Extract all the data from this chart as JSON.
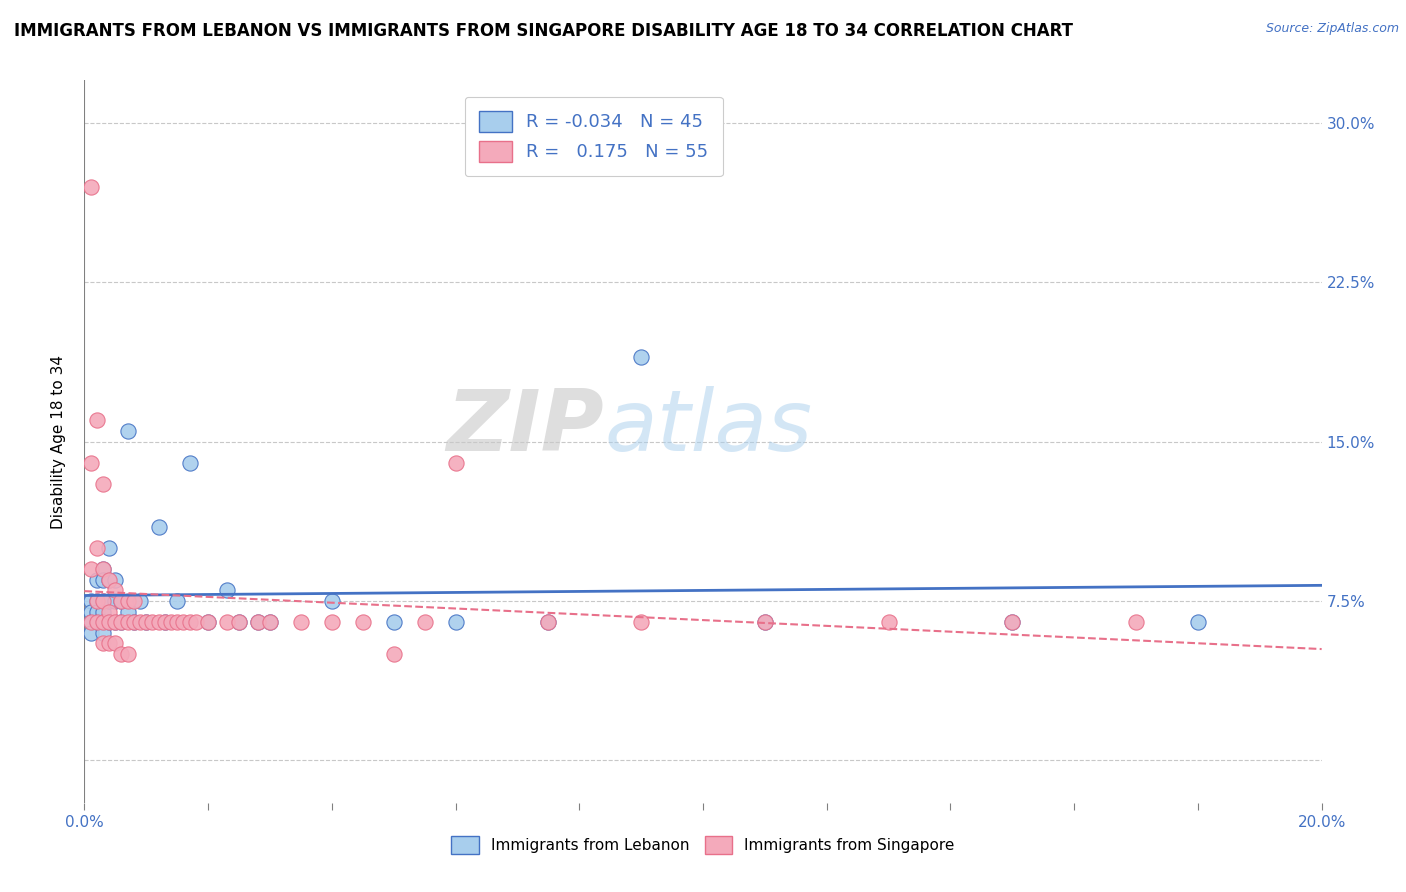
{
  "title": "IMMIGRANTS FROM LEBANON VS IMMIGRANTS FROM SINGAPORE DISABILITY AGE 18 TO 34 CORRELATION CHART",
  "source_text": "Source: ZipAtlas.com",
  "ylabel": "Disability Age 18 to 34",
  "xlim": [
    0.0,
    0.2
  ],
  "ylim": [
    -0.02,
    0.32
  ],
  "yticks": [
    0.0,
    0.075,
    0.15,
    0.225,
    0.3
  ],
  "ytick_labels": [
    "",
    "7.5%",
    "15.0%",
    "22.5%",
    "30.0%"
  ],
  "color_lebanon": "#A8CEED",
  "color_singapore": "#F4AABB",
  "trend_lebanon_color": "#4472C4",
  "trend_singapore_color": "#E8708A",
  "background_color": "#FFFFFF",
  "grid_color": "#C8C8C8",
  "watermark_zip": "ZIP",
  "watermark_atlas": "atlas",
  "title_fontsize": 12,
  "label_fontsize": 11,
  "tick_fontsize": 11,
  "legend_fontsize": 13,
  "lebanon_x": [
    0.001,
    0.001,
    0.001,
    0.001,
    0.002,
    0.002,
    0.002,
    0.002,
    0.003,
    0.003,
    0.003,
    0.003,
    0.003,
    0.003,
    0.004,
    0.004,
    0.004,
    0.004,
    0.005,
    0.005,
    0.005,
    0.006,
    0.006,
    0.007,
    0.007,
    0.008,
    0.009,
    0.01,
    0.012,
    0.013,
    0.015,
    0.017,
    0.02,
    0.023,
    0.025,
    0.028,
    0.03,
    0.04,
    0.05,
    0.06,
    0.075,
    0.09,
    0.11,
    0.15,
    0.18
  ],
  "lebanon_y": [
    0.075,
    0.07,
    0.065,
    0.06,
    0.085,
    0.075,
    0.07,
    0.065,
    0.09,
    0.085,
    0.075,
    0.07,
    0.065,
    0.06,
    0.1,
    0.085,
    0.075,
    0.065,
    0.085,
    0.075,
    0.065,
    0.075,
    0.065,
    0.155,
    0.07,
    0.065,
    0.075,
    0.065,
    0.11,
    0.065,
    0.075,
    0.14,
    0.065,
    0.08,
    0.065,
    0.065,
    0.065,
    0.075,
    0.065,
    0.065,
    0.065,
    0.19,
    0.065,
    0.065,
    0.065
  ],
  "singapore_x": [
    0.001,
    0.001,
    0.001,
    0.001,
    0.002,
    0.002,
    0.002,
    0.002,
    0.003,
    0.003,
    0.003,
    0.003,
    0.004,
    0.004,
    0.004,
    0.005,
    0.005,
    0.006,
    0.006,
    0.007,
    0.007,
    0.008,
    0.008,
    0.009,
    0.01,
    0.011,
    0.012,
    0.013,
    0.014,
    0.015,
    0.016,
    0.017,
    0.018,
    0.02,
    0.023,
    0.025,
    0.028,
    0.03,
    0.035,
    0.04,
    0.045,
    0.05,
    0.055,
    0.06,
    0.075,
    0.09,
    0.11,
    0.13,
    0.15,
    0.17,
    0.003,
    0.004,
    0.005,
    0.006,
    0.007
  ],
  "singapore_y": [
    0.27,
    0.14,
    0.09,
    0.065,
    0.16,
    0.1,
    0.075,
    0.065,
    0.13,
    0.09,
    0.075,
    0.065,
    0.085,
    0.07,
    0.065,
    0.08,
    0.065,
    0.075,
    0.065,
    0.075,
    0.065,
    0.075,
    0.065,
    0.065,
    0.065,
    0.065,
    0.065,
    0.065,
    0.065,
    0.065,
    0.065,
    0.065,
    0.065,
    0.065,
    0.065,
    0.065,
    0.065,
    0.065,
    0.065,
    0.065,
    0.065,
    0.05,
    0.065,
    0.14,
    0.065,
    0.065,
    0.065,
    0.065,
    0.065,
    0.065,
    0.055,
    0.055,
    0.055,
    0.05,
    0.05
  ]
}
